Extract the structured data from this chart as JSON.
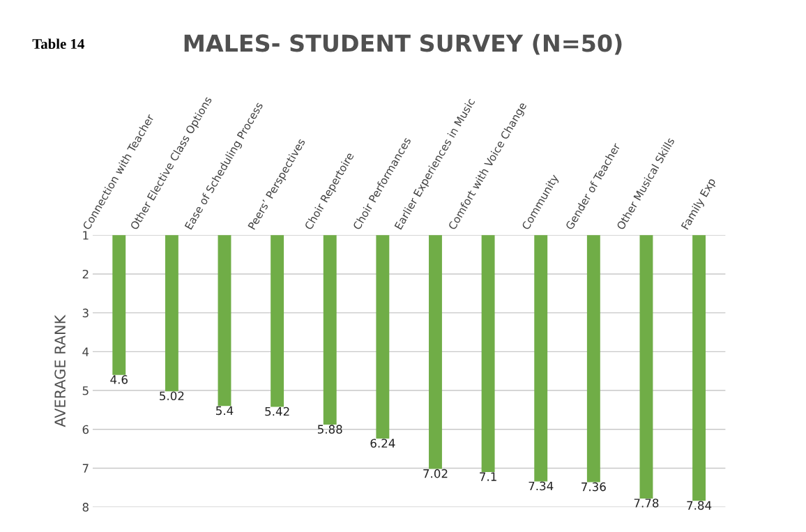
{
  "chart_data": {
    "type": "bar",
    "title": "MALES- STUDENT SURVEY (N=50)",
    "ylabel": "AVERAGE RANK",
    "annotations": [
      "Table 14"
    ],
    "categories": [
      "Connection with Teacher",
      "Other Elective Class Options",
      "Ease of Scheduling Process",
      "Peers’ Perspectives",
      "Choir Repertoire",
      "Choir Performances",
      "Earlier Experiences in Music",
      "Comfort with Voice Change",
      "Community",
      "Gender of Teacher",
      "Other Musical Skills",
      "Family Exp"
    ],
    "values": [
      4.6,
      5.02,
      5.4,
      5.42,
      5.88,
      6.24,
      7.02,
      7.1,
      7.34,
      7.36,
      7.78,
      7.84
    ],
    "color": "#70ad47",
    "ylim": [
      8,
      1
    ],
    "yticks": [
      1,
      2,
      3,
      4,
      5,
      6,
      7,
      8
    ],
    "grid": "y",
    "data_labels": true
  }
}
